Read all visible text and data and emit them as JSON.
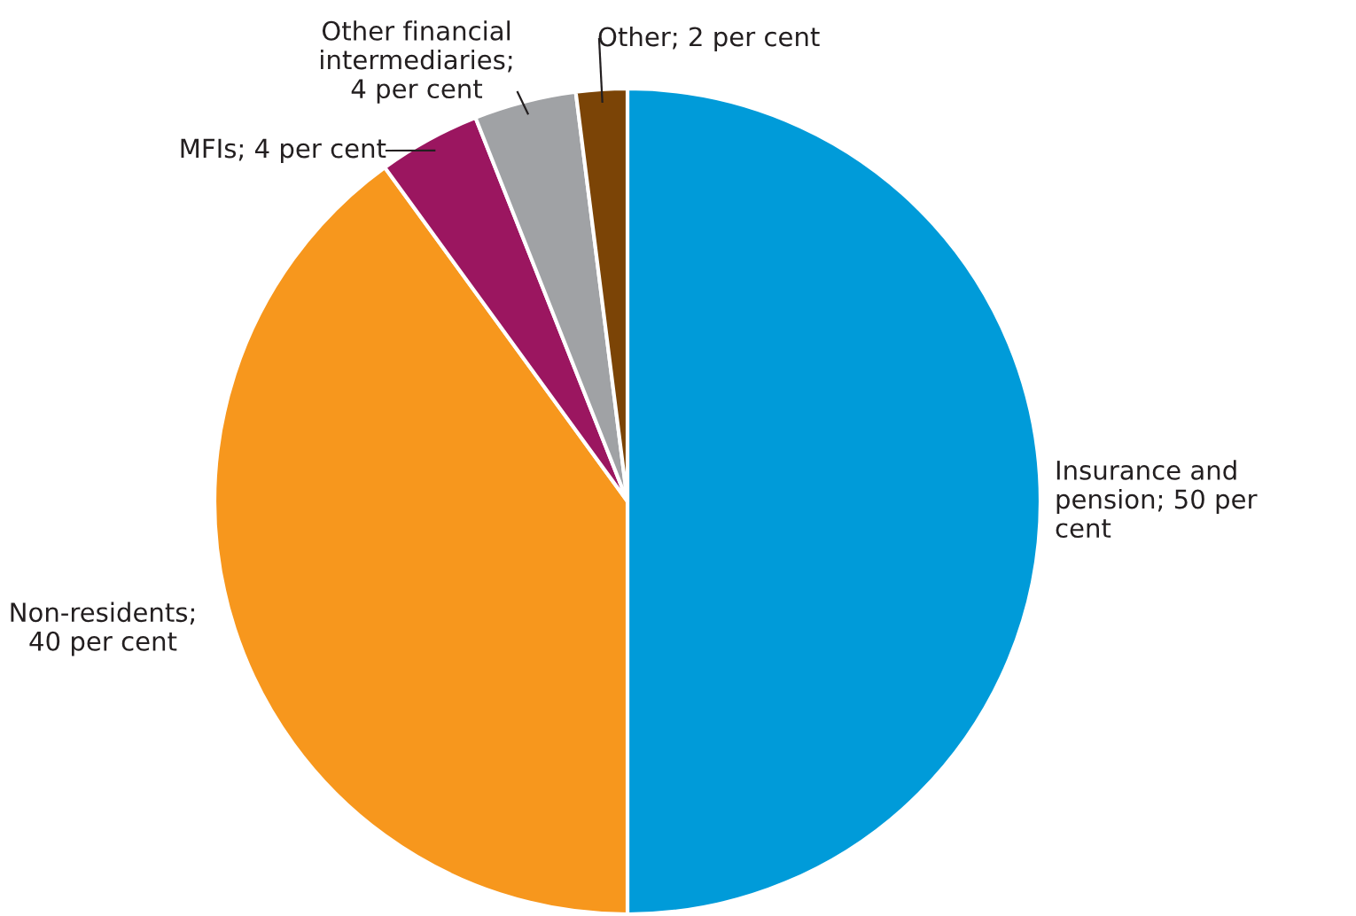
{
  "chart_data": {
    "type": "pie",
    "categories": [
      "Insurance and pension; 50 per cent",
      "Non-residents; 40 per cent",
      "MFIs; 4 per cent",
      "Other financial intermediaries; 4 per cent",
      "Other; 2 per cent"
    ],
    "values": [
      50,
      40,
      4,
      4,
      2
    ],
    "colors": [
      "#009bd9",
      "#f7971d",
      "#9b1660",
      "#a0a2a5",
      "#7b4406"
    ]
  }
}
